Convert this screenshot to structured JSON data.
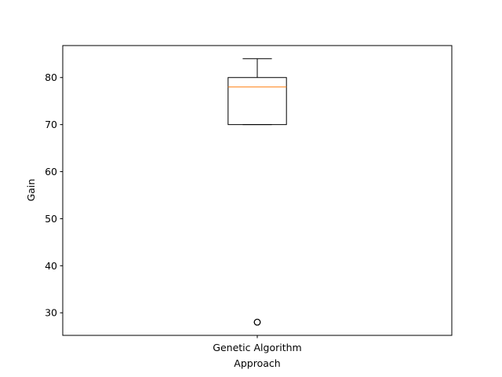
{
  "chart_data": {
    "type": "box",
    "title": "",
    "xlabel": "Approach",
    "ylabel": "Gain",
    "categories": [
      "Genetic Algorithm"
    ],
    "series": [
      {
        "category": "Genetic Algorithm",
        "whisker_low": 70,
        "q1": 70,
        "median": 78,
        "q3": 80,
        "whisker_high": 84,
        "outliers": [
          28,
          28,
          28
        ]
      }
    ],
    "ylim": [
      25.2,
      86.8
    ],
    "yticks": [
      30,
      40,
      50,
      60,
      70,
      80
    ],
    "grid": false,
    "colors": {
      "box": "#000000",
      "median": "#ff7f0e",
      "outlier": "#000000",
      "axes": "#000000"
    }
  }
}
